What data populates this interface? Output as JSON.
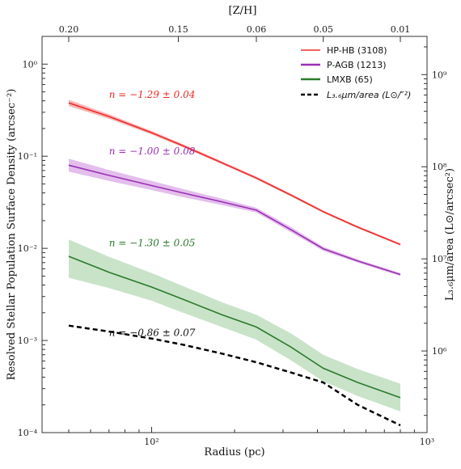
{
  "chart_data": {
    "type": "line",
    "title": "",
    "xlabel": "Radius (pc)",
    "ylabel": "Resolved Stellar Population Surface Density (arcsec⁻²)",
    "y2label": "L₃.₆μm/area (L⊙/arcsec²)",
    "top_axis_label": "[Z/H]",
    "x_scale": "log",
    "y_scale": "log",
    "xlim": [
      40,
      1000
    ],
    "ylim": [
      0.0001,
      2
    ],
    "y2lim": [
      130000,
      2600000000
    ],
    "x_ticks": [
      {
        "value": 100,
        "label": "10²"
      },
      {
        "value": 1000,
        "label": "10³"
      }
    ],
    "y_ticks": [
      {
        "value": 1,
        "label": "10⁰"
      },
      {
        "value": 0.1,
        "label": "10⁻¹"
      },
      {
        "value": 0.01,
        "label": "10⁻²"
      },
      {
        "value": 0.001,
        "label": "10⁻³"
      },
      {
        "value": 0.0001,
        "label": "10⁻⁴"
      }
    ],
    "y2_ticks": [
      {
        "value": 1000000000,
        "label": "10⁹"
      },
      {
        "value": 100000000,
        "label": "10⁸"
      },
      {
        "value": 10000000,
        "label": "10⁷"
      },
      {
        "value": 1000000,
        "label": "10⁶"
      }
    ],
    "top_ticks": [
      {
        "radius": 50,
        "label": "0.20"
      },
      {
        "radius": 125,
        "label": "0.15"
      },
      {
        "radius": 240,
        "label": "0.06"
      },
      {
        "radius": 420,
        "label": "0.05"
      },
      {
        "radius": 800,
        "label": "0.01"
      }
    ],
    "grid": false,
    "legend_position": "top-right",
    "series": [
      {
        "name": "HP-HB (3108)",
        "color": "#ee2b2b",
        "x": [
          50,
          70,
          100,
          130,
          180,
          240,
          320,
          420,
          560,
          800
        ],
        "y": [
          0.38,
          0.27,
          0.18,
          0.13,
          0.085,
          0.058,
          0.038,
          0.025,
          0.017,
          0.011
        ],
        "band_lower": [
          0.35,
          0.255,
          0.172,
          0.125,
          0.082,
          0.056,
          0.0368,
          0.0243,
          0.0165,
          0.0107
        ],
        "band_upper": [
          0.41,
          0.285,
          0.188,
          0.135,
          0.088,
          0.06,
          0.0392,
          0.0257,
          0.0175,
          0.0113
        ]
      },
      {
        "name": "P-AGB (1213)",
        "color": "#9b2fb5",
        "x": [
          50,
          70,
          100,
          130,
          180,
          240,
          320,
          420,
          560,
          800
        ],
        "y": [
          0.08,
          0.062,
          0.048,
          0.04,
          0.032,
          0.026,
          0.016,
          0.0099,
          0.0073,
          0.0052
        ],
        "band_lower": [
          0.068,
          0.054,
          0.043,
          0.036,
          0.0295,
          0.0245,
          0.015,
          0.0094,
          0.007,
          0.005
        ],
        "band_upper": [
          0.094,
          0.071,
          0.054,
          0.044,
          0.0347,
          0.0276,
          0.0171,
          0.0104,
          0.0076,
          0.0054
        ],
        "band_color": "#d9a8e6"
      },
      {
        "name": "LMXB (65)",
        "color": "#2a7a2a",
        "x": [
          50,
          70,
          100,
          130,
          180,
          240,
          320,
          420,
          560,
          800
        ],
        "y": [
          0.0082,
          0.0055,
          0.0038,
          0.0028,
          0.0019,
          0.0014,
          0.00085,
          0.0005,
          0.00035,
          0.00024
        ],
        "band_lower": [
          0.0048,
          0.0037,
          0.0027,
          0.002,
          0.0014,
          0.00102,
          0.00061,
          0.00036,
          0.00025,
          0.00017
        ],
        "band_upper": [
          0.0125,
          0.0081,
          0.0054,
          0.0039,
          0.0026,
          0.0019,
          0.0012,
          0.0007,
          0.00049,
          0.00034
        ],
        "band_color": "#b7dab7"
      },
      {
        "name": "L₃.₆μm/area (L⊙/″²)",
        "color": "#000000",
        "style": "dashed",
        "x": [
          50,
          70,
          100,
          130,
          180,
          240,
          320,
          420,
          560,
          800
        ],
        "y": [
          0.00145,
          0.00125,
          0.00105,
          0.0009,
          0.00072,
          0.00058,
          0.00045,
          0.00035,
          0.0002,
          0.00012
        ]
      }
    ],
    "annotations": [
      {
        "text": "n = −1.29 ± 0.04",
        "x": 70,
        "y": 0.43,
        "color": "#ee2b2b"
      },
      {
        "text": "n = −1.00 ± 0.08",
        "x": 70,
        "y": 0.105,
        "color": "#9b2fb5"
      },
      {
        "text": "n = −1.30 ± 0.05",
        "x": 70,
        "y": 0.0105,
        "color": "#2a7a2a"
      },
      {
        "text": "n = −0.86 ± 0.07",
        "x": 70,
        "y": 0.00112,
        "color": "#111111"
      }
    ]
  }
}
